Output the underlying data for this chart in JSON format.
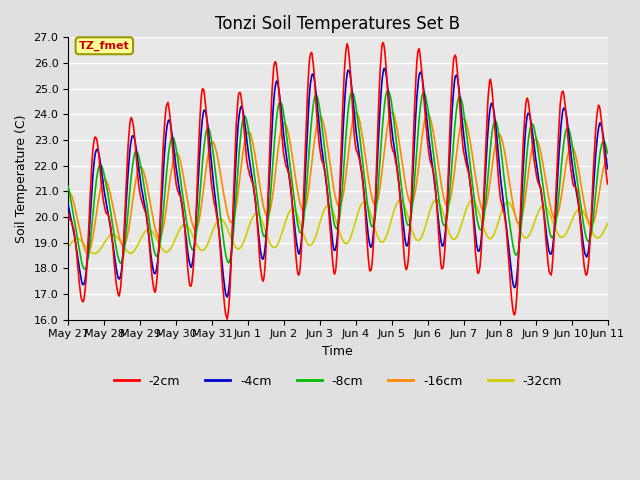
{
  "title": "Tonzi Soil Temperatures Set B",
  "xlabel": "Time",
  "ylabel": "Soil Temperature (C)",
  "ylim": [
    16.0,
    27.0
  ],
  "yticks": [
    16.0,
    17.0,
    18.0,
    19.0,
    20.0,
    21.0,
    22.0,
    23.0,
    24.0,
    25.0,
    26.0,
    27.0
  ],
  "xtick_labels": [
    "May 27",
    "May 28",
    "May 29",
    "May 30",
    "May 31",
    "Jun 1",
    "Jun 2",
    "Jun 3",
    "Jun 4",
    "Jun 5",
    "Jun 6",
    "Jun 7",
    "Jun 8",
    "Jun 9",
    "Jun 10",
    "Jun 11"
  ],
  "line_colors": [
    "#ff0000",
    "#0000cc",
    "#00bb00",
    "#ff8800",
    "#cccc00"
  ],
  "line_labels": [
    "-2cm",
    "-4cm",
    "-8cm",
    "-16cm",
    "-32cm"
  ],
  "background_color": "#e0e0e0",
  "plot_bg_color": "#e8e8e8",
  "annotation_text": "TZ_fmet",
  "annotation_color": "#cc0000",
  "annotation_bg": "#ffff99",
  "annotation_edge": "#999900",
  "title_fontsize": 12,
  "label_fontsize": 9,
  "tick_fontsize": 8
}
